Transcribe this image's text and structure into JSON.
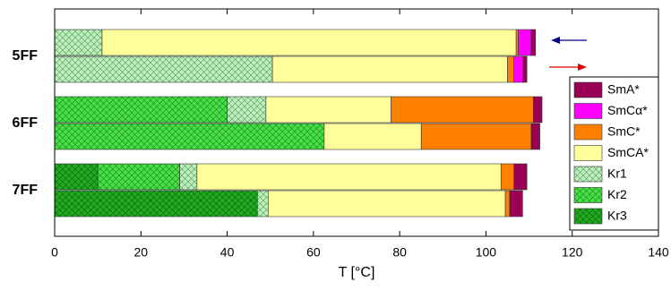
{
  "chart_data": {
    "type": "stacked-barh",
    "xlabel": "T [°C]",
    "categories": [
      "5FF",
      null,
      "6FF",
      null,
      "7FF",
      null
    ],
    "series": [
      {
        "name": "SmA*",
        "color": "#990055",
        "values": [
          1,
          1,
          2,
          2,
          3,
          3
        ]
      },
      {
        "name": "SmCα*",
        "color": "#ff00ff",
        "values": [
          3,
          2,
          0,
          0,
          0,
          0
        ]
      },
      {
        "name": "SmC*",
        "color": "#ff8000",
        "values": [
          0.5,
          1.5,
          33,
          25.5,
          3,
          1
        ]
      },
      {
        "name": "SmCA*",
        "color": "#ffff99",
        "values": [
          96,
          54.5,
          29,
          22.5,
          70.5,
          55
        ]
      },
      {
        "name": "Kr1",
        "color": "#b8f4b8",
        "values": [
          11,
          50.5,
          9,
          0,
          4,
          2.5
        ]
      },
      {
        "name": "Kr2",
        "color": "#44e044",
        "values": [
          0,
          0,
          40,
          62.5,
          19,
          0
        ]
      },
      {
        "name": "Kr3",
        "color": "#1faa1f",
        "values": [
          0,
          0,
          0,
          0,
          10,
          47
        ]
      }
    ],
    "hatched": [
      "Kr1",
      "Kr2",
      "Kr3"
    ],
    "xlim": [
      0,
      140
    ],
    "xticks": [
      0,
      20,
      40,
      60,
      80,
      100,
      120,
      140
    ]
  }
}
